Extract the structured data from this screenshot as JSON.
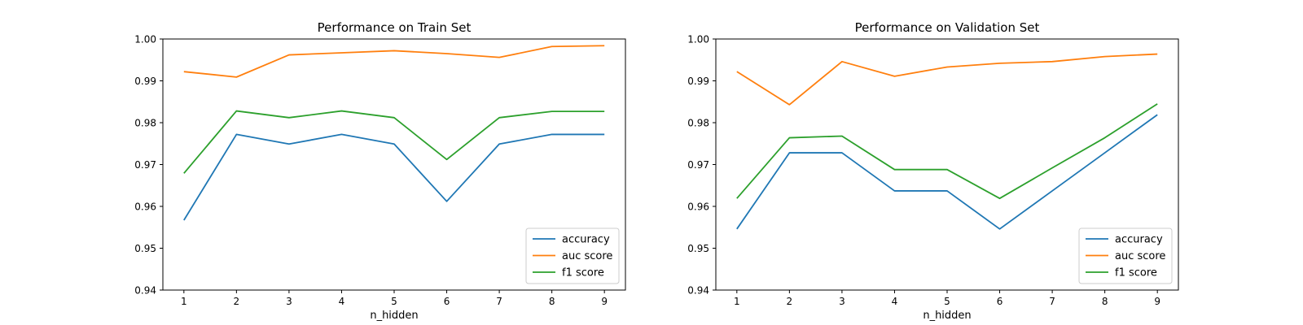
{
  "chart_data": [
    {
      "type": "line",
      "title": "Performance on Train Set",
      "xlabel": "n_hidden",
      "ylabel": "",
      "x": [
        1,
        2,
        3,
        4,
        5,
        6,
        7,
        8,
        9
      ],
      "xlim": [
        0.6,
        9.4
      ],
      "ylim": [
        0.94,
        1.0
      ],
      "yticks": [
        "0.94",
        "0.95",
        "0.96",
        "0.97",
        "0.98",
        "0.99",
        "1.00"
      ],
      "xticks": [
        "1",
        "2",
        "3",
        "4",
        "5",
        "6",
        "7",
        "8",
        "9"
      ],
      "grid": false,
      "legend_position": "lower-right",
      "series": [
        {
          "name": "accuracy",
          "color": "#1f77b4",
          "values": [
            0.9567,
            0.9772,
            0.9749,
            0.9772,
            0.9749,
            0.9612,
            0.9749,
            0.9772,
            0.9772
          ]
        },
        {
          "name": "auc score",
          "color": "#ff7f0e",
          "values": [
            0.9922,
            0.9909,
            0.9962,
            0.9967,
            0.9972,
            0.9965,
            0.9956,
            0.9982,
            0.9984
          ]
        },
        {
          "name": "f1 score",
          "color": "#2ca02c",
          "values": [
            0.9679,
            0.9828,
            0.9812,
            0.9828,
            0.9812,
            0.9712,
            0.9812,
            0.9827,
            0.9827
          ]
        }
      ]
    },
    {
      "type": "line",
      "title": "Performance on Validation Set",
      "xlabel": "n_hidden",
      "ylabel": "",
      "x": [
        1,
        2,
        3,
        4,
        5,
        6,
        7,
        8,
        9
      ],
      "xlim": [
        0.6,
        9.4
      ],
      "ylim": [
        0.94,
        1.0
      ],
      "yticks": [
        "0.94",
        "0.95",
        "0.96",
        "0.97",
        "0.98",
        "0.99",
        "1.00"
      ],
      "xticks": [
        "1",
        "2",
        "3",
        "4",
        "5",
        "6",
        "7",
        "8",
        "9"
      ],
      "grid": false,
      "legend_position": "lower-right",
      "series": [
        {
          "name": "accuracy",
          "color": "#1f77b4",
          "values": [
            0.9546,
            0.9728,
            0.9728,
            0.9637,
            0.9637,
            0.9546,
            0.9637,
            0.9728,
            0.9819
          ]
        },
        {
          "name": "auc score",
          "color": "#ff7f0e",
          "values": [
            0.9922,
            0.9843,
            0.9946,
            0.9911,
            0.9933,
            0.9942,
            0.9946,
            0.9958,
            0.9964
          ]
        },
        {
          "name": "f1 score",
          "color": "#2ca02c",
          "values": [
            0.9619,
            0.9764,
            0.9768,
            0.9688,
            0.9688,
            0.9619,
            0.9692,
            0.9764,
            0.9845
          ]
        }
      ]
    }
  ]
}
